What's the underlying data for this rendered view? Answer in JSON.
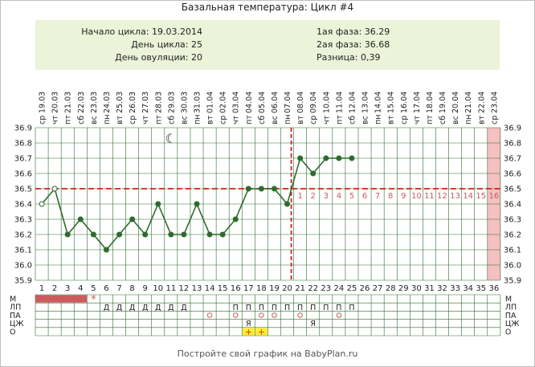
{
  "title": "Базальная температура: Цикл #4",
  "info": {
    "left": [
      "Начало цикла: 19.03.2014",
      "День цикла: 25",
      "День овуляции: 20"
    ],
    "right": [
      "1ая фаза: 36.29",
      "2ая фаза: 36.68",
      "Разница: 0,39"
    ]
  },
  "footer": "Постройте свой график на BabyPlan.ru",
  "chart_data": {
    "type": "line",
    "dates": [
      "19.03",
      "20.03",
      "21.03",
      "22.03",
      "23.03",
      "24.03",
      "25.03",
      "26.03",
      "27.03",
      "28.03",
      "29.03",
      "30.03",
      "31.03",
      "01.04",
      "02.04",
      "03.04",
      "04.04",
      "05.04",
      "06.04",
      "07.04",
      "08.04",
      "09.04",
      "10.04",
      "11.04",
      "12.04",
      "13.04",
      "14.04",
      "15.04",
      "16.04",
      "17.04",
      "18.04",
      "19.04",
      "20.04",
      "21.04",
      "22.04",
      "23.04"
    ],
    "weekdays": [
      "ср",
      "чт",
      "пт",
      "сб",
      "вс",
      "пн",
      "вт",
      "ср",
      "чт",
      "пт",
      "сб",
      "вс",
      "пн",
      "вт",
      "ср",
      "чт",
      "пт",
      "сб",
      "вс",
      "пн",
      "вт",
      "ср",
      "чт",
      "пт",
      "сб",
      "вс",
      "пн",
      "вт",
      "ср",
      "чт",
      "пт",
      "сб",
      "вс",
      "пн",
      "вт",
      "ср"
    ],
    "days": [
      1,
      2,
      3,
      4,
      5,
      6,
      7,
      8,
      9,
      10,
      11,
      12,
      13,
      14,
      15,
      16,
      17,
      18,
      19,
      20,
      21,
      22,
      23,
      24,
      25,
      26,
      27,
      28,
      29,
      30,
      31,
      32,
      33,
      34,
      35,
      36
    ],
    "y_ticks": [
      "36.9",
      "36.8",
      "36.7",
      "36.6",
      "36.5",
      "36.4",
      "36.3",
      "36.2",
      "36.1",
      "36.0",
      "35.9"
    ],
    "ylim": [
      35.9,
      36.9
    ],
    "temperatures": [
      36.4,
      36.5,
      36.2,
      36.3,
      36.2,
      36.1,
      36.2,
      36.3,
      36.2,
      36.4,
      36.2,
      36.2,
      36.4,
      36.2,
      36.2,
      36.3,
      36.5,
      36.5,
      36.5,
      36.4,
      36.7,
      36.6,
      36.7,
      36.7,
      36.7
    ],
    "point_style": [
      "open",
      "open",
      "filled",
      "filled",
      "filled",
      "filled",
      "filled",
      "filled",
      "filled",
      "filled",
      "filled",
      "filled",
      "filled",
      "filled",
      "filled",
      "filled",
      "filled",
      "filled",
      "filled",
      "filled",
      "filled",
      "filled",
      "filled",
      "filled",
      "filled"
    ],
    "coverline": 36.5,
    "ovulation_day": 20,
    "highlight_day": 36,
    "luteal_labels": [
      "1",
      "2",
      "3",
      "4",
      "5",
      "6",
      "7",
      "8",
      "9",
      "10",
      "11",
      "12",
      "13",
      "14",
      "15",
      "16"
    ],
    "moon_day": 11,
    "moon_symbol": "☾",
    "colors": {
      "line": "#2e6b2e",
      "coverline": "#cc2222",
      "grid": "#2e6b2e",
      "luteal_labels": "#c06060",
      "highlight": "#f4c0c0",
      "menstruation": "#cc5c5c",
      "star": "#cc5c5c",
      "plus_fill": "#ffee33",
      "info_bg": "#ebf3d8"
    },
    "row_labels": [
      "М",
      "ЛП",
      "ПА",
      "ЦЖ",
      "О"
    ],
    "rows": {
      "M": {
        "menstruation_days": [
          1,
          2,
          3,
          4
        ],
        "star_day": 5,
        "star_symbol": "*"
      },
      "LP": {
        "D": {
          "days": [
            6,
            7,
            8,
            9,
            10,
            11,
            12
          ],
          "symbol": "Д"
        },
        "P": {
          "days": [
            16,
            17,
            18,
            19,
            20,
            21,
            22,
            23,
            24,
            25
          ],
          "symbol": "П"
        }
      },
      "PA": {
        "days": [
          14,
          16,
          18,
          19,
          21,
          24
        ],
        "symbol": "○"
      },
      "CZh": {
        "days": [
          17,
          22
        ],
        "symbol": "Я"
      },
      "O": {
        "days": [
          17,
          18
        ],
        "symbol": "+"
      }
    }
  }
}
